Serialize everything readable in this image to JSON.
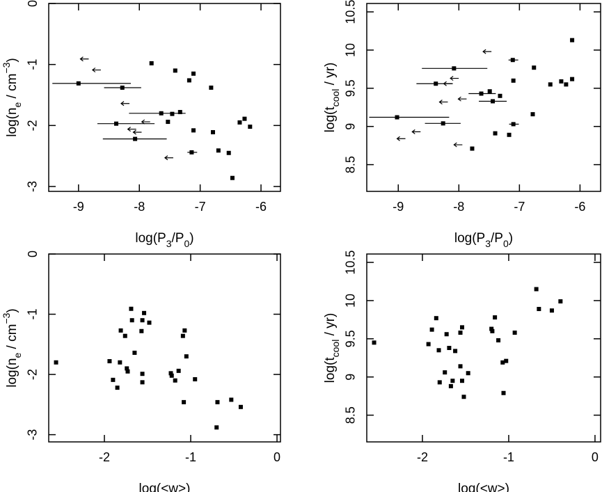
{
  "chart_data": [
    {
      "type": "scatter",
      "color": "#000000",
      "xlabel": [
        {
          "text": "log(P"
        },
        {
          "text": "3",
          "sub": true
        },
        {
          "text": "/P"
        },
        {
          "text": "0",
          "sub": true
        },
        {
          "text": ")"
        }
      ],
      "ylabel": [
        {
          "text": "log(n"
        },
        {
          "text": "e",
          "sub": true
        },
        {
          "text": " / cm"
        },
        {
          "text": "−3",
          "sup": true
        },
        {
          "text": ")"
        }
      ],
      "xlim": [
        -9.49,
        -5.68
      ],
      "ylim": [
        -3.08,
        0
      ],
      "xticks": [
        -9,
        -8,
        -7,
        -6
      ],
      "yticks": [
        -3,
        -2,
        -1,
        0
      ],
      "points": {
        "x": [
          -7.8,
          -7.41,
          -7.11,
          -7.18,
          -6.82,
          -9.0,
          -8.28,
          -7.64,
          -7.46,
          -7.33,
          -7.53,
          -8.38,
          -8.07,
          -7.11,
          -6.79,
          -6.35,
          -6.27,
          -6.18,
          -7.14,
          -6.7,
          -6.53,
          -6.47
        ],
        "y": [
          -0.98,
          -1.1,
          -1.15,
          -1.26,
          -1.38,
          -1.31,
          -1.38,
          -1.8,
          -1.81,
          -1.78,
          -1.94,
          -1.97,
          -2.22,
          -2.08,
          -2.11,
          -1.95,
          -1.89,
          -2.02,
          -2.44,
          -2.41,
          -2.45,
          -2.86
        ],
        "xlow": [
          null,
          null,
          null,
          null,
          null,
          -9.43,
          -8.58,
          -8.17,
          null,
          null,
          null,
          -8.69,
          -8.6,
          null,
          null,
          null,
          null,
          null,
          -7.21,
          null,
          null,
          null
        ],
        "xhigh": [
          null,
          null,
          null,
          null,
          null,
          -8.14,
          -7.97,
          -7.24,
          null,
          null,
          null,
          -7.75,
          -7.55,
          null,
          null,
          null,
          null,
          null,
          -7.05,
          null,
          null,
          null
        ]
      },
      "limits": {
        "x": [
          -8.97,
          -8.77,
          -8.3,
          -8.19,
          -8.1,
          -7.96,
          -7.58
        ],
        "y": [
          -0.91,
          -1.09,
          -1.64,
          -2.06,
          -2.11,
          -1.94,
          -2.53
        ]
      }
    },
    {
      "type": "scatter",
      "color": "#000000",
      "xlabel": [
        {
          "text": "log(P"
        },
        {
          "text": "3",
          "sub": true
        },
        {
          "text": "/P"
        },
        {
          "text": "0",
          "sub": true
        },
        {
          "text": ")"
        }
      ],
      "ylabel": [
        {
          "text": "log(t"
        },
        {
          "text": "cool",
          "sub": true
        },
        {
          "text": " / yr)"
        }
      ],
      "xlim": [
        -9.52,
        -5.66
      ],
      "ylim": [
        8.15,
        10.61
      ],
      "xticks": [
        -9,
        -8,
        -7,
        -6
      ],
      "yticks": [
        8.5,
        9,
        9.5,
        10,
        10.5
      ],
      "points": {
        "x": [
          -6.13,
          -8.08,
          -7.11,
          -6.76,
          -7.1,
          -8.38,
          -7.63,
          -7.49,
          -7.32,
          -7.44,
          -6.49,
          -6.31,
          -6.23,
          -6.13,
          -6.78,
          -9.02,
          -8.26,
          -7.1,
          -7.4,
          -7.17,
          -7.78
        ],
        "y": [
          10.13,
          9.76,
          9.87,
          9.77,
          9.6,
          9.56,
          9.43,
          9.46,
          9.4,
          9.33,
          9.55,
          9.59,
          9.55,
          9.62,
          9.16,
          9.12,
          9.04,
          9.03,
          8.91,
          8.89,
          8.71
        ],
        "xlow": [
          null,
          -8.61,
          -7.18,
          null,
          null,
          -8.7,
          -7.84,
          null,
          null,
          -7.67,
          null,
          null,
          null,
          null,
          null,
          -9.48,
          -8.56,
          -7.17,
          null,
          null,
          null
        ],
        "xhigh": [
          null,
          -7.53,
          -7.02,
          null,
          null,
          -8.1,
          -7.39,
          null,
          null,
          -7.21,
          null,
          null,
          null,
          null,
          null,
          -8.16,
          -7.97,
          -7.01,
          null,
          null,
          null
        ]
      },
      "limits": {
        "x": [
          -7.6,
          -8.14,
          -8.25,
          -8.32,
          -8.01,
          -8.77,
          -9.02,
          -8.08
        ],
        "y": [
          9.98,
          9.63,
          9.56,
          9.32,
          9.36,
          8.93,
          8.84,
          8.76
        ]
      }
    },
    {
      "type": "scatter",
      "color": "#000000",
      "xlabel": [
        {
          "text": "log(<w>)"
        }
      ],
      "ylabel": [
        {
          "text": "log(n"
        },
        {
          "text": "e",
          "sub": true
        },
        {
          "text": " / cm"
        },
        {
          "text": "−3",
          "sup": true
        },
        {
          "text": ")"
        }
      ],
      "xlim": [
        -2.645,
        0.04
      ],
      "ylim": [
        -3.12,
        0
      ],
      "xticks": [
        -2,
        -1,
        0
      ],
      "yticks": [
        -3,
        -2,
        -1,
        0
      ],
      "points": {
        "x": [
          -2.56,
          -1.94,
          -1.9,
          -1.85,
          -1.82,
          -1.81,
          -1.76,
          -1.74,
          -1.73,
          -1.69,
          -1.68,
          -1.65,
          -1.57,
          -1.56,
          -1.54,
          -1.56,
          -1.56,
          -1.48,
          -1.23,
          -1.22,
          -1.18,
          -1.14,
          -1.09,
          -1.07,
          -1.08,
          -1.05,
          -0.95,
          -0.69,
          -0.53,
          -0.42,
          -0.7
        ],
        "y": [
          -1.8,
          -1.78,
          -2.09,
          -2.22,
          -1.8,
          -1.27,
          -1.36,
          -1.9,
          -1.95,
          -0.91,
          -1.1,
          -1.64,
          -1.28,
          -1.1,
          -0.98,
          -1.99,
          -2.13,
          -1.14,
          -1.98,
          -2.02,
          -2.1,
          -1.94,
          -1.36,
          -1.27,
          -2.46,
          -1.7,
          -2.08,
          -2.46,
          -2.42,
          -2.54,
          -2.88
        ]
      }
    },
    {
      "type": "scatter",
      "color": "#000000",
      "xlabel": [
        {
          "text": "log(<w>)"
        }
      ],
      "ylabel": [
        {
          "text": "log(t"
        },
        {
          "text": "cool",
          "sub": true
        },
        {
          "text": " / yr)"
        }
      ],
      "xlim": [
        -2.645,
        0.065
      ],
      "ylim": [
        8.15,
        10.61
      ],
      "xticks": [
        -2,
        -1,
        0
      ],
      "yticks": [
        8.5,
        9,
        9.5,
        10,
        10.5
      ],
      "points": {
        "x": [
          -2.56,
          -1.93,
          -1.89,
          -1.84,
          -1.81,
          -1.8,
          -1.74,
          -1.72,
          -1.69,
          -1.67,
          -1.65,
          -1.62,
          -1.56,
          -1.54,
          -1.56,
          -1.54,
          -1.52,
          -1.47,
          -1.2,
          -1.19,
          -1.16,
          -1.12,
          -1.07,
          -1.03,
          -1.06,
          -0.93,
          -0.68,
          -0.65,
          -0.5,
          -0.4
        ],
        "y": [
          9.45,
          9.43,
          9.62,
          9.77,
          9.35,
          8.93,
          9.06,
          9.56,
          9.38,
          8.88,
          8.95,
          9.34,
          9.58,
          9.65,
          9.14,
          8.95,
          8.74,
          9.05,
          9.63,
          9.6,
          9.78,
          9.48,
          9.19,
          9.21,
          8.79,
          9.58,
          10.15,
          9.89,
          9.87,
          9.99
        ]
      }
    }
  ]
}
